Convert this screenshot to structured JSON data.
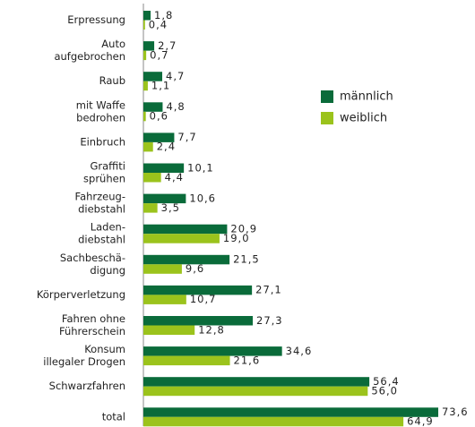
{
  "chart_data": {
    "type": "bar",
    "orientation": "horizontal",
    "categories": [
      [
        "Erpressung"
      ],
      [
        "Auto",
        "aufgebrochen"
      ],
      [
        "Raub"
      ],
      [
        "mit Waffe",
        "bedrohen"
      ],
      [
        "Einbruch"
      ],
      [
        "Graffiti",
        "sprühen"
      ],
      [
        "Fahrzeug-",
        "diebstahl"
      ],
      [
        "Laden-",
        "diebstahl"
      ],
      [
        "Sachbeschä-",
        "digung"
      ],
      [
        "Körperverletzung"
      ],
      [
        "Fahren ohne",
        "Führerschein"
      ],
      [
        "Konsum",
        "illegaler Drogen"
      ],
      [
        "Schwarzfahren"
      ],
      [
        "total"
      ]
    ],
    "series": [
      {
        "name": "männlich",
        "color": "#0a6b3a",
        "values": [
          1.8,
          2.7,
          4.7,
          4.8,
          7.7,
          10.1,
          10.6,
          20.9,
          21.5,
          27.1,
          27.3,
          34.6,
          56.4,
          73.6
        ],
        "value_labels": [
          "1,8",
          "2,7",
          "4,7",
          "4,8",
          "7,7",
          "10,1",
          "10,6",
          "20,9",
          "21,5",
          "27,1",
          "27,3",
          "34,6",
          "56,4",
          "73,6"
        ]
      },
      {
        "name": "weiblich",
        "color": "#9bc31c",
        "values": [
          0.4,
          0.7,
          1.1,
          0.6,
          2.4,
          4.4,
          3.5,
          19.0,
          9.6,
          10.7,
          12.8,
          21.6,
          56.0,
          64.9
        ],
        "value_labels": [
          "0,4",
          "0,7",
          "1,1",
          "0,6",
          "2,4",
          "4,4",
          "3,5",
          "19,0",
          "9,6",
          "10,7",
          "12,8",
          "21,6",
          "56,0",
          "64,9"
        ]
      }
    ]
  }
}
